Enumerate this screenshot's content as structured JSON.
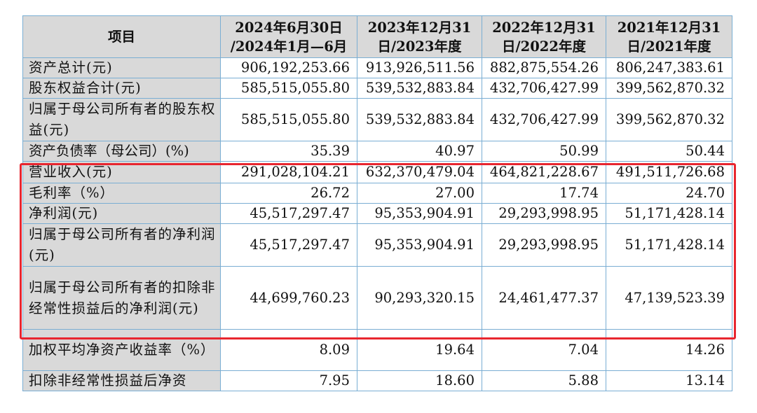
{
  "table": {
    "headers": [
      "项目",
      "2024年6月30日\n/2024年1月—6月",
      "2023年12月31\n日/2023年度",
      "2022年12月31\n日/2022年度",
      "2021年12月31\n日/2021年度"
    ],
    "rows": [
      {
        "label": "资产总计(元)",
        "values": [
          "906,192,253.66",
          "913,926,511.56",
          "882,875,554.26",
          "806,247,383.61"
        ]
      },
      {
        "label": "股东权益合计(元)",
        "values": [
          "585,515,055.80",
          "539,532,883.84",
          "432,706,427.99",
          "399,562,870.32"
        ]
      },
      {
        "label": "归属于母公司所有者的股东权益(元)",
        "values": [
          "585,515,055.80",
          "539,532,883.84",
          "432,706,427.99",
          "399,562,870.32"
        ]
      },
      {
        "label": "资产负债率（母公司）(%)",
        "values": [
          "35.39",
          "40.97",
          "50.99",
          "50.44"
        ]
      },
      {
        "label": "营业收入(元)",
        "values": [
          "291,028,104.21",
          "632,370,479.04",
          "464,821,228.67",
          "491,511,726.68"
        ]
      },
      {
        "label": "毛利率（%）",
        "values": [
          "26.72",
          "27.00",
          "17.74",
          "24.70"
        ]
      },
      {
        "label": "净利润(元)",
        "values": [
          "45,517,297.47",
          "95,353,904.91",
          "29,293,998.95",
          "51,171,428.14"
        ]
      },
      {
        "label": "归属于母公司所有者的净利润(元)",
        "values": [
          "45,517,297.47",
          "95,353,904.91",
          "29,293,998.95",
          "51,171,428.14"
        ]
      },
      {
        "label": "归属于母公司所有者的扣除非经常性损益后的净利润(元)",
        "values": [
          "44,699,760.23",
          "90,293,320.15",
          "24,461,477.37",
          "47,139,523.39"
        ]
      },
      {
        "label": "加权平均净资产收益率（%）",
        "values": [
          "8.09",
          "19.64",
          "7.04",
          "14.26"
        ]
      },
      {
        "label": "扣除非经常性损益后净资",
        "values": [
          "7.95",
          "18.60",
          "5.88",
          "13.14"
        ]
      }
    ]
  },
  "colors": {
    "highlight_border": "#e8262f",
    "grid_line": "#7aaed3",
    "label_background": "#d9d9d9"
  }
}
